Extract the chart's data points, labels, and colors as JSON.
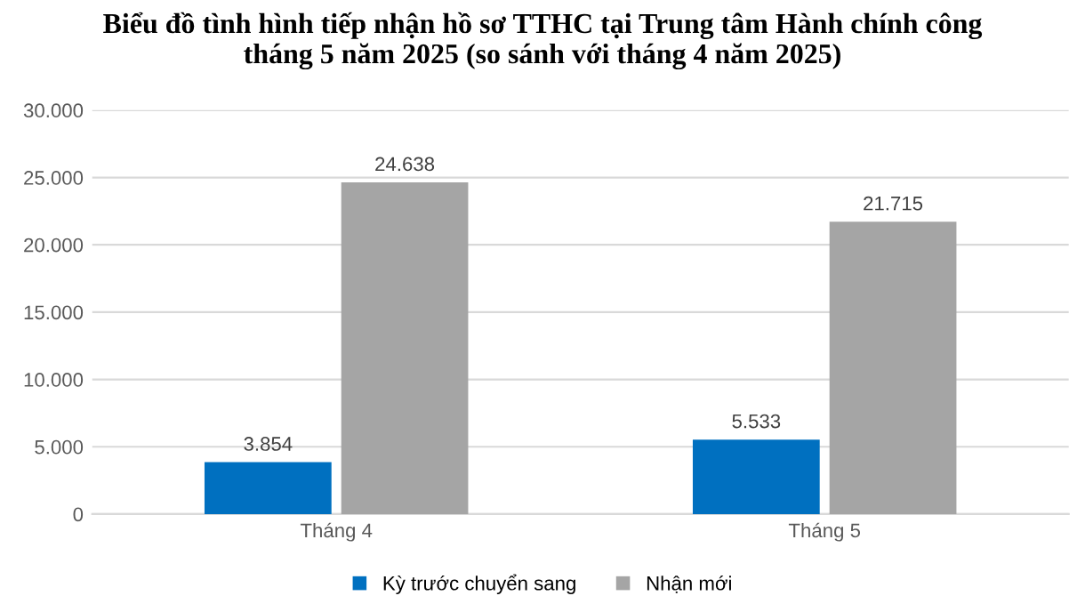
{
  "chart_data": {
    "type": "bar",
    "title": "Biểu đồ tình hình tiếp nhận hồ sơ TTHC tại Trung tâm Hành chính công\ntháng 5 năm 2025 (so sánh với tháng 4 năm 2025)",
    "categories": [
      "Tháng 4",
      "Tháng 5"
    ],
    "series": [
      {
        "name": "Kỳ trước chuyển sang",
        "color": "#0070c0",
        "values": [
          3854,
          5533
        ],
        "value_labels": [
          "3.854",
          "5.533"
        ]
      },
      {
        "name": "Nhận mới",
        "color": "#a5a5a5",
        "values": [
          24638,
          21715
        ],
        "value_labels": [
          "24.638",
          "21.715"
        ]
      }
    ],
    "ylim": [
      0,
      30000
    ],
    "yticks": [
      {
        "value": 0,
        "label": "0"
      },
      {
        "value": 5000,
        "label": "5.000"
      },
      {
        "value": 10000,
        "label": "10.000"
      },
      {
        "value": 15000,
        "label": "15.000"
      },
      {
        "value": 20000,
        "label": "20.000"
      },
      {
        "value": 25000,
        "label": "25.000"
      },
      {
        "value": 30000,
        "label": "30.000"
      }
    ],
    "grid": "y",
    "legend": "bottom"
  }
}
